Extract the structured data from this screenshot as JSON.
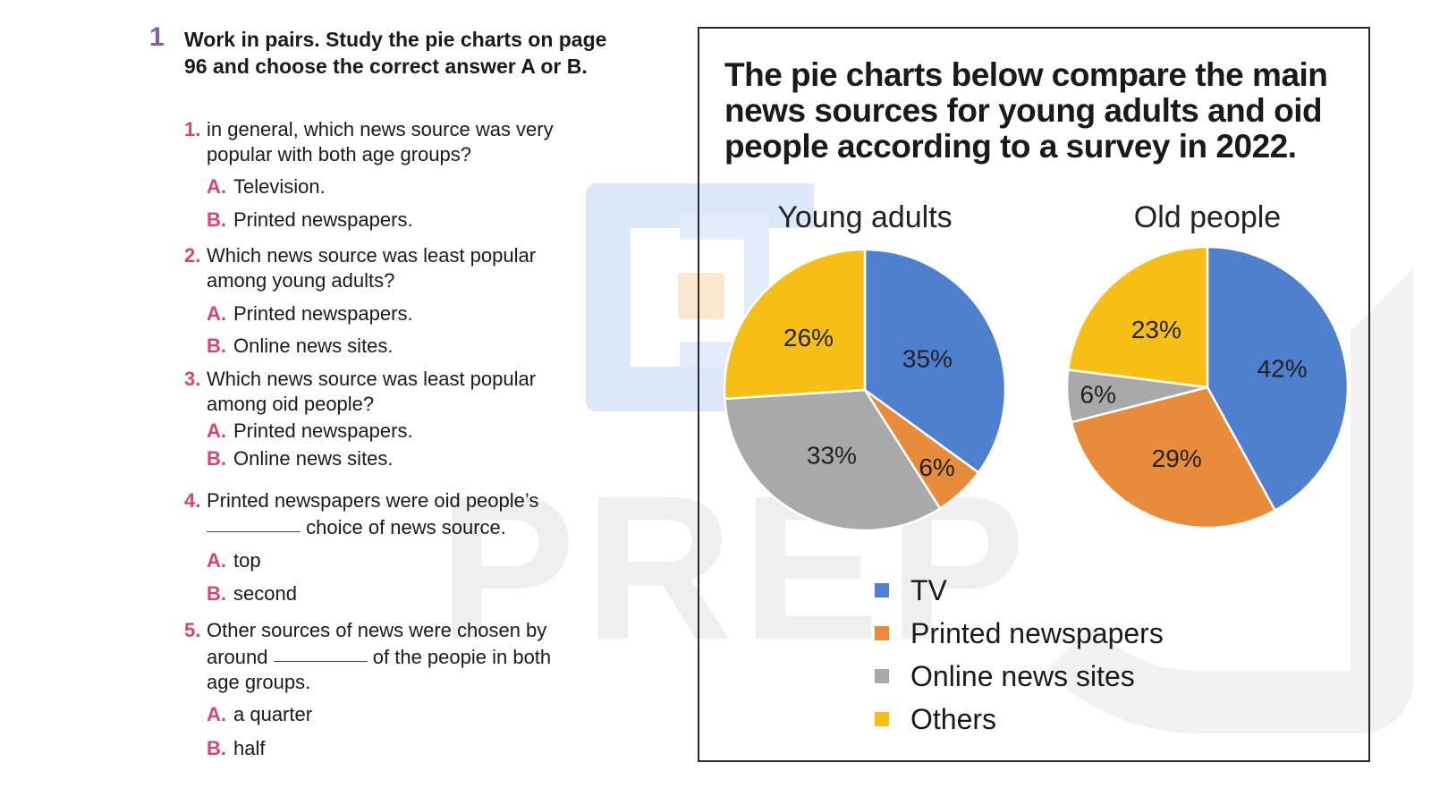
{
  "exercise": {
    "number": "1",
    "instruction": "Work in pairs. Study the pie charts on page 96 and choose the correct answer A or B.",
    "questions": [
      {
        "num": "1.",
        "text": "in general, which news source was very\npopular with both age groups?",
        "options": [
          {
            "letter": "A.",
            "text": "Television."
          },
          {
            "letter": "B.",
            "text": "Printed newspapers."
          }
        ]
      },
      {
        "num": "2.",
        "text": "Which news source was least popular\namong young adults?",
        "options": [
          {
            "letter": "A.",
            "text": "Printed newspapers."
          },
          {
            "letter": "B.",
            "text": "Online news sites."
          }
        ]
      },
      {
        "num": "3.",
        "text": "Which news source was least popular\namong oid people?",
        "options": [
          {
            "letter": "A.",
            "text": "Printed newspapers."
          },
          {
            "letter": "B.",
            "text": "Online news sites."
          }
        ]
      },
      {
        "num": "4.",
        "text_before": "Printed newspapers were oid people’s",
        "text_after": "choice of news source.",
        "options": [
          {
            "letter": "A.",
            "text": "top"
          },
          {
            "letter": "B.",
            "text": "second"
          }
        ]
      },
      {
        "num": "5.",
        "text_before": "Other sources of news were chosen by",
        "text_mid_before": "around",
        "text_mid_after": "of the peopie in both",
        "text_after": "age groups.",
        "options": [
          {
            "letter": "A.",
            "text": "a quarter"
          },
          {
            "letter": "B.",
            "text": "half"
          }
        ]
      }
    ]
  },
  "watermark": "PREP",
  "chart_data": {
    "type": "pie",
    "title": "The pie charts below compare the main news sources for young adults and oid people according to a survey in 2022.",
    "categories": [
      "TV",
      "Printed newspapers",
      "Online news sites",
      "Others"
    ],
    "colors": [
      "#4f7fcf",
      "#e88b3a",
      "#a9a9a9",
      "#f7be16"
    ],
    "legend_position": "bottom",
    "pies": [
      {
        "name": "Young adults",
        "values": [
          35,
          6,
          33,
          26
        ],
        "labels": [
          "35%",
          "6%",
          "33%",
          "26%"
        ]
      },
      {
        "name": "Old people",
        "values": [
          42,
          29,
          6,
          23
        ],
        "labels": [
          "42%",
          "29%",
          "6%",
          "23%"
        ]
      }
    ]
  }
}
